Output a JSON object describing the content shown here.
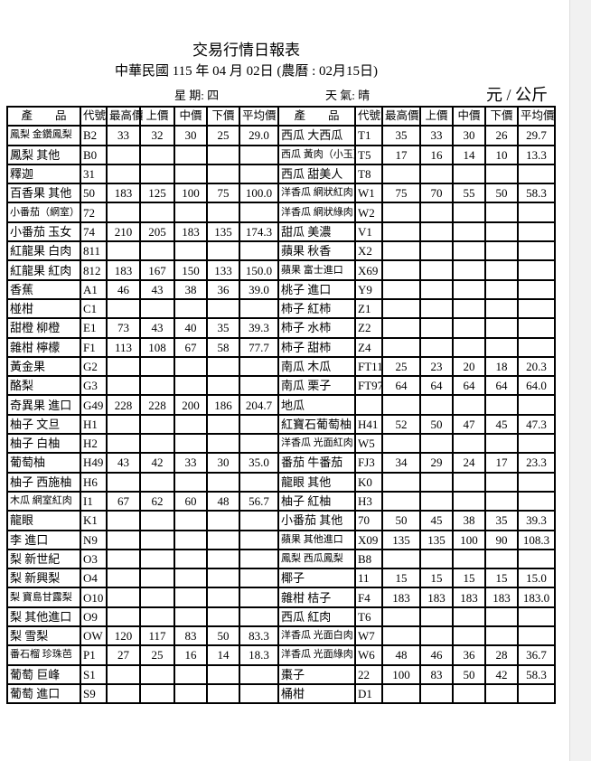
{
  "title": "交易行情日報表",
  "subtitle": "中華民國 115 年 04 月 02日  (農曆 : 02月15日)",
  "weekday": "星 期:  四",
  "weather": "天 氣:  晴",
  "unit": "元 / 公斤",
  "headers": [
    "產　　品",
    "代號",
    "最高價",
    "上價",
    "中價",
    "下價",
    "平均價",
    "產　　品",
    "代號",
    "最高價",
    "上價",
    "中價",
    "下價",
    "平均價"
  ],
  "rows": [
    [
      [
        "鳳梨 金鑽鳳梨",
        "B2",
        "33",
        "32",
        "30",
        "25",
        "29.0"
      ],
      [
        "西瓜 大西瓜",
        "T1",
        "35",
        "33",
        "30",
        "26",
        "29.7"
      ]
    ],
    [
      [
        "鳳梨 其他",
        "B0",
        "",
        "",
        "",
        "",
        ""
      ],
      [
        "西瓜 黃肉（小玉）",
        "T5",
        "17",
        "16",
        "14",
        "10",
        "13.3"
      ]
    ],
    [
      [
        "釋迦",
        "31",
        "",
        "",
        "",
        "",
        ""
      ],
      [
        "西瓜 甜美人",
        "T8",
        "",
        "",
        "",
        "",
        ""
      ]
    ],
    [
      [
        "百香果 其他",
        "50",
        "183",
        "125",
        "100",
        "75",
        "100.0"
      ],
      [
        "洋香瓜 網狀紅肉",
        "W1",
        "75",
        "70",
        "55",
        "50",
        "58.3"
      ]
    ],
    [
      [
        "小番茄（網室）",
        "72",
        "",
        "",
        "",
        "",
        ""
      ],
      [
        "洋香瓜 網狀綠肉",
        "W2",
        "",
        "",
        "",
        "",
        ""
      ]
    ],
    [
      [
        "小番茄 玉女",
        "74",
        "210",
        "205",
        "183",
        "135",
        "174.3"
      ],
      [
        "甜瓜 美濃",
        "V1",
        "",
        "",
        "",
        "",
        ""
      ]
    ],
    [
      [
        "紅龍果 白肉",
        "811",
        "",
        "",
        "",
        "",
        ""
      ],
      [
        "蘋果 秋香",
        "X2",
        "",
        "",
        "",
        "",
        ""
      ]
    ],
    [
      [
        "紅龍果 紅肉",
        "812",
        "183",
        "167",
        "150",
        "133",
        "150.0"
      ],
      [
        "蘋果 富士進口",
        "X69",
        "",
        "",
        "",
        "",
        ""
      ]
    ],
    [
      [
        "香蕉",
        "A1",
        "46",
        "43",
        "38",
        "36",
        "39.0"
      ],
      [
        "桃子 進口",
        "Y9",
        "",
        "",
        "",
        "",
        ""
      ]
    ],
    [
      [
        "椪柑",
        "C1",
        "",
        "",
        "",
        "",
        ""
      ],
      [
        "柿子 紅柿",
        "Z1",
        "",
        "",
        "",
        "",
        ""
      ]
    ],
    [
      [
        "甜橙 柳橙",
        "E1",
        "73",
        "43",
        "40",
        "35",
        "39.3"
      ],
      [
        "柿子 水柿",
        "Z2",
        "",
        "",
        "",
        "",
        ""
      ]
    ],
    [
      [
        "雜柑 檸檬",
        "F1",
        "113",
        "108",
        "67",
        "58",
        "77.7"
      ],
      [
        "柿子 甜柿",
        "Z4",
        "",
        "",
        "",
        "",
        ""
      ]
    ],
    [
      [
        "黃金果",
        "G2",
        "",
        "",
        "",
        "",
        ""
      ],
      [
        "南瓜  木瓜",
        "FT11",
        "25",
        "23",
        "20",
        "18",
        "20.3"
      ]
    ],
    [
      [
        "酪梨",
        "G3",
        "",
        "",
        "",
        "",
        ""
      ],
      [
        "南瓜  栗子",
        "FT97",
        "64",
        "64",
        "64",
        "64",
        "64.0"
      ]
    ],
    [
      [
        "奇異果 進口",
        "G49",
        "228",
        "228",
        "200",
        "186",
        "204.7"
      ],
      [
        "地瓜",
        "",
        "",
        "",
        "",
        "",
        ""
      ]
    ],
    [
      [
        "柚子 文旦",
        "H1",
        "",
        "",
        "",
        "",
        ""
      ],
      [
        "紅寶石葡萄柚",
        "H41",
        "52",
        "50",
        "47",
        "45",
        "47.3"
      ]
    ],
    [
      [
        "柚子 白柚",
        "H2",
        "",
        "",
        "",
        "",
        ""
      ],
      [
        "洋香瓜 光面紅肉",
        "W5",
        "",
        "",
        "",
        "",
        ""
      ]
    ],
    [
      [
        "葡萄柚",
        "H49",
        "43",
        "42",
        "33",
        "30",
        "35.0"
      ],
      [
        "番茄 牛番茄",
        "FJ3",
        "34",
        "29",
        "24",
        "17",
        "23.3"
      ]
    ],
    [
      [
        "柚子 西施柚",
        "H6",
        "",
        "",
        "",
        "",
        ""
      ],
      [
        "龍眼 其他",
        "K0",
        "",
        "",
        "",
        "",
        ""
      ]
    ],
    [
      [
        "木瓜 網室紅肉",
        "I1",
        "67",
        "62",
        "60",
        "48",
        "56.7"
      ],
      [
        "柚子 紅柚",
        "H3",
        "",
        "",
        "",
        "",
        ""
      ]
    ],
    [
      [
        "龍眼",
        "K1",
        "",
        "",
        "",
        "",
        ""
      ],
      [
        "小番茄 其他",
        "70",
        "50",
        "45",
        "38",
        "35",
        "39.3"
      ]
    ],
    [
      [
        "李 進口",
        "N9",
        "",
        "",
        "",
        "",
        ""
      ],
      [
        "蘋果 其他進口",
        "X09",
        "135",
        "135",
        "100",
        "90",
        "108.3"
      ]
    ],
    [
      [
        "梨 新世紀",
        "O3",
        "",
        "",
        "",
        "",
        ""
      ],
      [
        "鳳梨 西瓜鳳梨",
        "B8",
        "",
        "",
        "",
        "",
        ""
      ]
    ],
    [
      [
        "梨 新興梨",
        "O4",
        "",
        "",
        "",
        "",
        ""
      ],
      [
        "椰子",
        "11",
        "15",
        "15",
        "15",
        "15",
        "15.0"
      ]
    ],
    [
      [
        "梨 寶島甘露梨",
        "O10",
        "",
        "",
        "",
        "",
        ""
      ],
      [
        "雜柑 桔子",
        "F4",
        "183",
        "183",
        "183",
        "183",
        "183.0"
      ]
    ],
    [
      [
        "梨 其他進口",
        "O9",
        "",
        "",
        "",
        "",
        ""
      ],
      [
        "西瓜 紅肉",
        "T6",
        "",
        "",
        "",
        "",
        ""
      ]
    ],
    [
      [
        "梨 雪梨",
        "OW",
        "120",
        "117",
        "83",
        "50",
        "83.3"
      ],
      [
        "洋香瓜 光面白肉",
        "W7",
        "",
        "",
        "",
        "",
        ""
      ]
    ],
    [
      [
        "番石榴 珍珠芭",
        "P1",
        "27",
        "25",
        "16",
        "14",
        "18.3"
      ],
      [
        "洋香瓜 光面綠肉",
        "W6",
        "48",
        "46",
        "36",
        "28",
        "36.7"
      ]
    ],
    [
      [
        "葡萄 巨峰",
        "S1",
        "",
        "",
        "",
        "",
        ""
      ],
      [
        "棗子",
        "22",
        "100",
        "83",
        "50",
        "42",
        "58.3"
      ]
    ],
    [
      [
        "葡萄 進口",
        "S9",
        "",
        "",
        "",
        "",
        ""
      ],
      [
        "桶柑",
        "D1",
        "",
        "",
        "",
        "",
        ""
      ]
    ]
  ]
}
